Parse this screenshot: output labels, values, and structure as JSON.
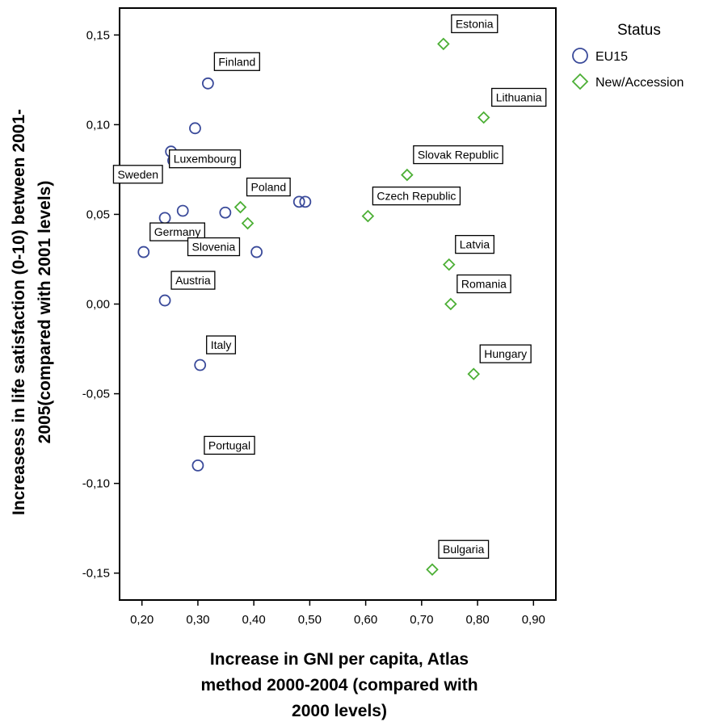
{
  "chart_data": {
    "type": "scatter",
    "xlabel_lines": [
      "Increase in GNI per capita, Atlas",
      "method 2000-2004 (compared with",
      "2000 levels)"
    ],
    "ylabel_lines": [
      "Increasess in life satisfaction (0-10) between 2001-",
      "2005(compared with 2001 levels)"
    ],
    "xlim": [
      0.16,
      0.94
    ],
    "ylim": [
      -0.165,
      0.165
    ],
    "x_ticks": [
      0.2,
      0.3,
      0.4,
      0.5,
      0.6,
      0.7,
      0.8,
      0.9
    ],
    "x_tick_labels": [
      "0,20",
      "0,30",
      "0,40",
      "0,50",
      "0,60",
      "0,70",
      "0,80",
      "0,90"
    ],
    "y_ticks": [
      0.15,
      0.1,
      0.05,
      0.0,
      -0.05,
      -0.1,
      -0.15
    ],
    "y_tick_labels": [
      "0,15",
      "0,10",
      "0,05",
      "0,00",
      "-0,05",
      "-0,10",
      "-0,15"
    ],
    "grid": false,
    "legend": {
      "title": "Status",
      "position": "top-right",
      "entries": [
        {
          "name": "EU15",
          "marker": "circle",
          "color": "#3a4a9a"
        },
        {
          "name": "New/Accession",
          "marker": "diamond",
          "color": "#4caf35"
        }
      ]
    },
    "series": [
      {
        "name": "EU15",
        "marker": "circle",
        "color": "#3a4a9a",
        "points": [
          {
            "x": 0.318,
            "y": 0.123,
            "label": "Finland"
          },
          {
            "x": 0.295,
            "y": 0.098,
            "label": ""
          },
          {
            "x": 0.252,
            "y": 0.085,
            "label": "Luxembourg"
          },
          {
            "x": 0.256,
            "y": 0.08,
            "label": "Sweden"
          },
          {
            "x": 0.273,
            "y": 0.052,
            "label": ""
          },
          {
            "x": 0.241,
            "y": 0.048,
            "label": ""
          },
          {
            "x": 0.349,
            "y": 0.051,
            "label": ""
          },
          {
            "x": 0.481,
            "y": 0.057,
            "label": ""
          },
          {
            "x": 0.492,
            "y": 0.057,
            "label": ""
          },
          {
            "x": 0.405,
            "y": 0.029,
            "label": ""
          },
          {
            "x": 0.203,
            "y": 0.029,
            "label": "Germany"
          },
          {
            "x": 0.241,
            "y": 0.002,
            "label": "Austria"
          },
          {
            "x": 0.304,
            "y": -0.034,
            "label": "Italy"
          },
          {
            "x": 0.3,
            "y": -0.09,
            "label": "Portugal"
          }
        ]
      },
      {
        "name": "New/Accession",
        "marker": "diamond",
        "color": "#4caf35",
        "points": [
          {
            "x": 0.739,
            "y": 0.145,
            "label": "Estonia"
          },
          {
            "x": 0.811,
            "y": 0.104,
            "label": "Lithuania"
          },
          {
            "x": 0.674,
            "y": 0.072,
            "label": "Slovak Republic"
          },
          {
            "x": 0.604,
            "y": 0.049,
            "label": "Czech Republic"
          },
          {
            "x": 0.376,
            "y": 0.054,
            "label": "Poland"
          },
          {
            "x": 0.389,
            "y": 0.045,
            "label": "Slovenia"
          },
          {
            "x": 0.749,
            "y": 0.022,
            "label": "Latvia"
          },
          {
            "x": 0.752,
            "y": 0.0,
            "label": "Romania"
          },
          {
            "x": 0.793,
            "y": -0.039,
            "label": "Hungary"
          },
          {
            "x": 0.719,
            "y": -0.148,
            "label": "Bulgaria"
          }
        ]
      }
    ]
  }
}
